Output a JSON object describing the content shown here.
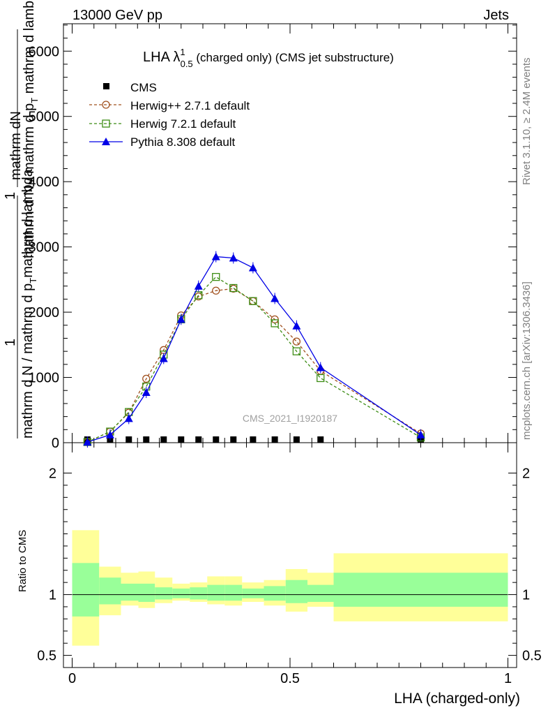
{
  "header": {
    "left": "13000 GeV pp",
    "right": "Jets"
  },
  "title": {
    "main": "LHA λ",
    "sup": "1",
    "sub": "0.5",
    "rest": " (charged only) (CMS jet substructure)"
  },
  "ylabel_main": {
    "numerator": "mathrm dN",
    "inner_top": "1",
    "inner_denominator": "mathrm d N / mathrm d p",
    "inner_denominator_sub": "T",
    "inner_denominator_rest": " mathrm d lambda",
    "factor": "1",
    "outer_denominator": "mathrm d N / mathrm d p",
    "outer_denominator_sub": "T",
    "outer_denominator_rest": "mathrm d lambda"
  },
  "right_labels": {
    "rivet": "Rivet 3.1.10, ≥ 2.4M events",
    "mcplots": "mcplots.cern.ch [arXiv:1306.3436]"
  },
  "watermark": "CMS_2021_I1920187",
  "ratio_ylabel": "Ratio to CMS",
  "xlabel": "LHA (charged-only)",
  "chart_data": {
    "type": "line",
    "xlim": [
      -0.02,
      1.02
    ],
    "ylim": [
      0,
      6420
    ],
    "xticks": [
      0,
      0.5,
      1
    ],
    "xtick_labels": [
      "0",
      "0.5",
      "1"
    ],
    "yticks": [
      0,
      1000,
      2000,
      3000,
      4000,
      5000,
      6000
    ],
    "ytick_labels": [
      "0",
      "1000",
      "2000",
      "3000",
      "4000",
      "5000",
      "6000"
    ],
    "grid": false,
    "legend_position": "top-left",
    "data_x": [
      0.035,
      0.087,
      0.13,
      0.17,
      0.21,
      0.25,
      0.29,
      0.33,
      0.37,
      0.415,
      0.465,
      0.515,
      0.57,
      0.8
    ],
    "series": [
      {
        "name": "CMS",
        "style": "black-square",
        "color": "#000000",
        "values": [
          0,
          0,
          0,
          0,
          0,
          0,
          0,
          0,
          0,
          0,
          0,
          0,
          0,
          0
        ]
      },
      {
        "name": "Herwig++ 2.7.1 default",
        "style": "orange-circle-dashed",
        "color": "#a0501e",
        "values": [
          10,
          170,
          460,
          980,
          1420,
          1950,
          2240,
          2330,
          2360,
          2170,
          1890,
          1550,
          1100,
          140
        ]
      },
      {
        "name": "Herwig 7.2.1 default",
        "style": "green-square-dashed",
        "color": "#3c8c14",
        "values": [
          10,
          170,
          470,
          860,
          1350,
          1890,
          2260,
          2540,
          2370,
          2170,
          1830,
          1400,
          990,
          80
        ]
      },
      {
        "name": "Pythia 8.308 default",
        "style": "blue-triangle-solid",
        "color": "#0000e6",
        "values": [
          10,
          120,
          370,
          770,
          1290,
          1890,
          2400,
          2850,
          2830,
          2680,
          2210,
          1790,
          1150,
          120
        ]
      }
    ],
    "ratio": {
      "ylim": [
        0.4,
        2.25
      ],
      "yticks": [
        0.5,
        1,
        2
      ],
      "ytick_labels": [
        "0.5",
        "1",
        "2"
      ],
      "reference": 1,
      "bins": [
        {
          "x0": 0.0,
          "x1": 0.062,
          "inner": [
            0.82,
            1.26
          ],
          "outer": [
            0.58,
            1.53
          ]
        },
        {
          "x0": 0.062,
          "x1": 0.112,
          "inner": [
            0.92,
            1.14
          ],
          "outer": [
            0.83,
            1.23
          ]
        },
        {
          "x0": 0.112,
          "x1": 0.152,
          "inner": [
            0.95,
            1.09
          ],
          "outer": [
            0.91,
            1.18
          ]
        },
        {
          "x0": 0.152,
          "x1": 0.19,
          "inner": [
            0.94,
            1.09
          ],
          "outer": [
            0.89,
            1.19
          ]
        },
        {
          "x0": 0.19,
          "x1": 0.23,
          "inner": [
            0.96,
            1.06
          ],
          "outer": [
            0.93,
            1.14
          ]
        },
        {
          "x0": 0.23,
          "x1": 0.27,
          "inner": [
            0.97,
            1.05
          ],
          "outer": [
            0.95,
            1.09
          ]
        },
        {
          "x0": 0.27,
          "x1": 0.31,
          "inner": [
            0.96,
            1.06
          ],
          "outer": [
            0.94,
            1.1
          ]
        },
        {
          "x0": 0.31,
          "x1": 0.35,
          "inner": [
            0.95,
            1.08
          ],
          "outer": [
            0.92,
            1.15
          ]
        },
        {
          "x0": 0.35,
          "x1": 0.39,
          "inner": [
            0.95,
            1.08
          ],
          "outer": [
            0.91,
            1.15
          ]
        },
        {
          "x0": 0.39,
          "x1": 0.44,
          "inner": [
            0.97,
            1.05
          ],
          "outer": [
            0.94,
            1.1
          ]
        },
        {
          "x0": 0.44,
          "x1": 0.49,
          "inner": [
            0.95,
            1.07
          ],
          "outer": [
            0.91,
            1.12
          ]
        },
        {
          "x0": 0.49,
          "x1": 0.54,
          "inner": [
            0.93,
            1.12
          ],
          "outer": [
            0.86,
            1.21
          ]
        },
        {
          "x0": 0.54,
          "x1": 0.6,
          "inner": [
            0.94,
            1.08
          ],
          "outer": [
            0.9,
            1.18
          ]
        },
        {
          "x0": 0.6,
          "x1": 1.0,
          "inner": [
            0.9,
            1.18
          ],
          "outer": [
            0.78,
            1.34
          ]
        }
      ]
    }
  }
}
